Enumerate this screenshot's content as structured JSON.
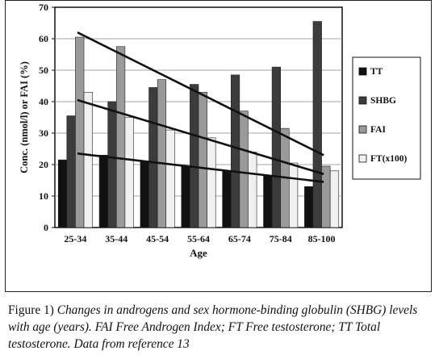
{
  "chart_data": {
    "type": "bar",
    "categories": [
      "25-34",
      "35-44",
      "45-54",
      "55-64",
      "65-74",
      "75-84",
      "85-100"
    ],
    "series": [
      {
        "name": "TT",
        "color": "#111111",
        "values": [
          21.5,
          23,
          21,
          19.5,
          18,
          16.5,
          13
        ]
      },
      {
        "name": "SHBG",
        "color": "#3c3c3c",
        "values": [
          35.5,
          40,
          44.5,
          45.5,
          48.5,
          51,
          65.5
        ]
      },
      {
        "name": "FAI",
        "color": "#9a9a9a",
        "values": [
          60.5,
          57.5,
          47,
          43,
          37,
          31.5,
          19.5
        ]
      },
      {
        "name": "FT(x100)",
        "color": "#f0f0f0",
        "values": [
          43,
          35,
          31,
          28.5,
          24,
          20.5,
          18
        ]
      }
    ],
    "trendlines": [
      {
        "series": "TT",
        "start": 23.5,
        "end": 14.5
      },
      {
        "series": "FAI",
        "start": 62,
        "end": 23
      },
      {
        "series": "FT(x100)",
        "start": 40.5,
        "end": 17
      }
    ],
    "ylim": [
      0,
      70
    ],
    "yticks": [
      "0",
      "10",
      "20",
      "30",
      "40",
      "50",
      "60",
      "70"
    ],
    "xlabel": "Age",
    "ylabel": "Conc. (nmol/l) or FAI (%)",
    "legend_position": "right",
    "grid": true
  },
  "caption": {
    "label": "Figure 1)",
    "text": "Changes in androgens and sex hormone-binding globulin (SHBG) levels with age (years). FAI Free Androgen Index; FT Free testosterone; TT Total testosterone. Data from reference 13"
  }
}
